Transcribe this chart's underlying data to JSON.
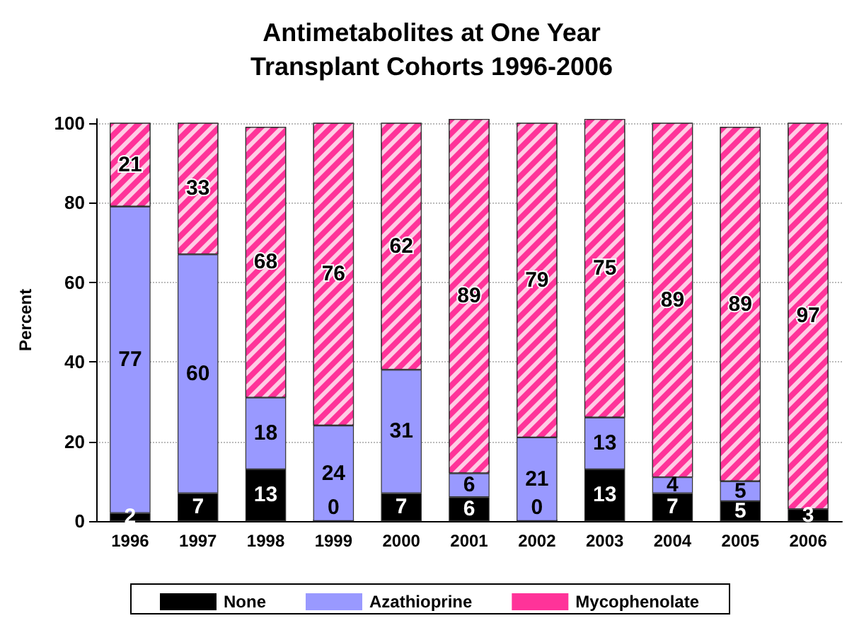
{
  "chart_data": {
    "type": "bar",
    "stacked": true,
    "title": "Antimetabolites at One Year\nTransplant Cohorts 1996-2006",
    "ylabel": "Percent",
    "categories": [
      "1996",
      "1997",
      "1998",
      "1999",
      "2000",
      "2001",
      "2002",
      "2003",
      "2004",
      "2005",
      "2006"
    ],
    "series": [
      {
        "name": "None",
        "color": "#000000",
        "values": [
          2,
          7,
          13,
          0,
          7,
          6,
          0,
          13,
          7,
          5,
          3
        ],
        "value_labels": [
          "2",
          "7",
          "13",
          "0",
          "7",
          "6",
          "0",
          "13",
          "7",
          "5",
          "3"
        ]
      },
      {
        "name": "Azathioprine",
        "color": "#9999ff",
        "values": [
          77,
          60,
          18,
          24,
          31,
          6,
          21,
          13,
          4,
          5,
          0
        ],
        "value_labels": [
          "77",
          "60",
          "18",
          "24",
          "31",
          "6",
          "21",
          "13",
          "4",
          "5",
          null
        ]
      },
      {
        "name": "Mycophenolate",
        "color": "#ff3399",
        "values": [
          21,
          33,
          68,
          76,
          62,
          89,
          79,
          75,
          89,
          89,
          97
        ],
        "value_labels": [
          "21",
          "33",
          "68",
          "76",
          "62",
          "89",
          "79",
          "75",
          "89",
          "89",
          "97"
        ]
      }
    ],
    "ylim": [
      0,
      101
    ],
    "yticks": [
      0,
      20,
      40,
      60,
      80,
      100
    ],
    "grid": "y",
    "legend": "bottom"
  }
}
